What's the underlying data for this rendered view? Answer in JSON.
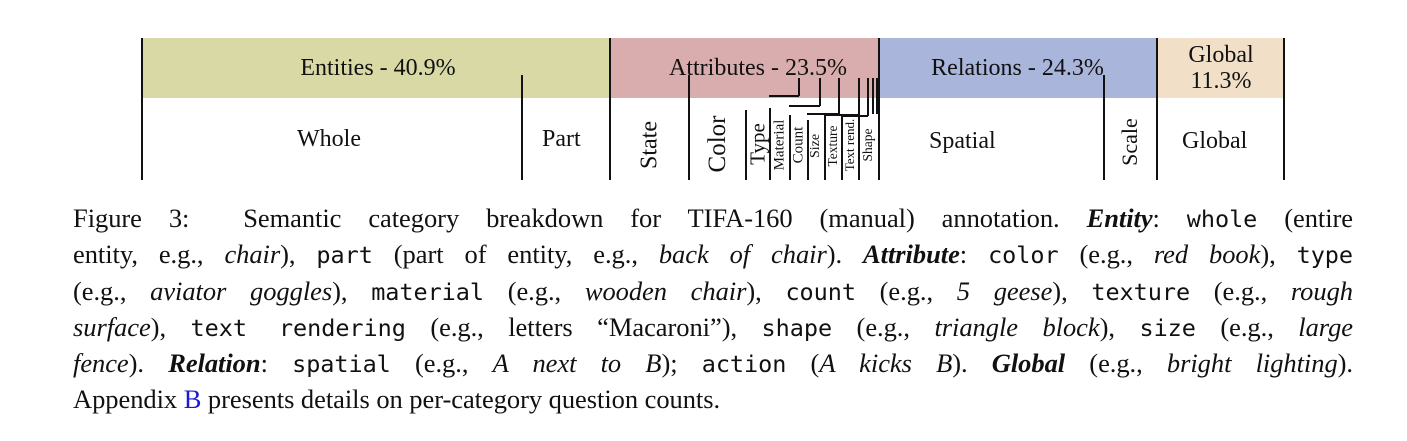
{
  "figure": {
    "categories": [
      {
        "key": "entities",
        "label": "Entities - 40.9%",
        "percent": 40.9,
        "color": "#d8d9a5"
      },
      {
        "key": "attributes",
        "label": "Attributes - 23.5%",
        "percent": 23.5,
        "color": "#d9adad"
      },
      {
        "key": "relations",
        "label": "Relations - 24.3%",
        "percent": 24.3,
        "color": "#a9b5da"
      },
      {
        "key": "global",
        "label_line1": "Global",
        "label_line2": "11.3%",
        "percent": 11.3,
        "color": "#f1dfc7"
      }
    ],
    "subcategories": {
      "whole": "Whole",
      "part": "Part",
      "state": "State",
      "color": "Color",
      "type": "Type",
      "material": "Material",
      "count": "Count",
      "size": "Size",
      "texture": "Texture",
      "text_rend": "Text rend.",
      "shape": "Shape",
      "spatial": "Spatial",
      "scale": "Scale",
      "global": "Global"
    }
  },
  "caption": {
    "fig_label": "Figure 3:",
    "intro": "Semantic category breakdown for TIFA-160 (manual) annotation.",
    "entity": "Entity",
    "whole_kw": "whole",
    "whole_desc": "(entire",
    "whole_desc2": "entity, e.g.,",
    "whole_ex": "chair",
    "part_kw": "part",
    "part_desc": "(part of entity, e.g.,",
    "part_ex": "back of chair",
    "attribute": "Attribute",
    "color_kw": "color",
    "color_ex": "red book",
    "type_kw": "type",
    "type_ex": "aviator goggles",
    "material_kw": "material",
    "material_ex": "wooden chair",
    "count_kw": "count",
    "count_ex": "5 geese",
    "texture_kw": "texture",
    "texture_ex1": "rough",
    "texture_ex2": "surface",
    "textrend_kw": "text rendering",
    "textrend_ex": "(e.g., letters “Macaroni”),",
    "shape_kw": "shape",
    "shape_ex": "triangle block",
    "size_kw": "size",
    "size_ex1": "large",
    "size_ex2": "fence",
    "relation": "Relation",
    "spatial_kw": "spatial",
    "spatial_ex": "A next to B",
    "action_kw": "action",
    "action_ex": "A kicks B",
    "global": "Global",
    "global_ex": "bright lighting",
    "appendix_pre": "Appendix",
    "appendix_link": "B",
    "appendix_post": "presents details on per-category question counts."
  }
}
